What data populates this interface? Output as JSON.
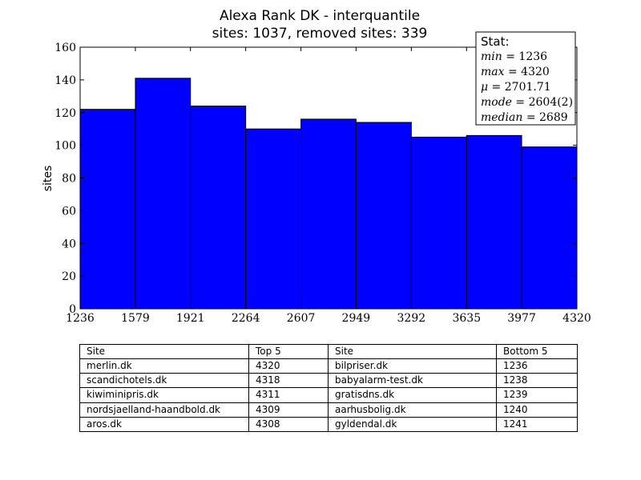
{
  "chart_data": {
    "type": "bar",
    "title": "Alexa Rank DK - interquantile",
    "subtitle": "sites: 1037, removed sites: 339",
    "ylabel": "sites",
    "xlabel": "",
    "xlim": [
      1236,
      4320
    ],
    "ylim": [
      0,
      160
    ],
    "bin_edges": [
      1236,
      1579,
      1921,
      2264,
      2607,
      2949,
      3292,
      3635,
      3977,
      4320
    ],
    "x_tick_labels": [
      "1236",
      "1579",
      "1921",
      "2264",
      "2607",
      "2949",
      "3292",
      "3635",
      "3977",
      "4320"
    ],
    "y_ticks": [
      0,
      20,
      40,
      60,
      80,
      100,
      120,
      140,
      160
    ],
    "values": [
      122,
      141,
      124,
      110,
      116,
      114,
      105,
      106,
      99
    ],
    "bar_color": "#0000ff",
    "grid": false,
    "legend": "none",
    "stat_box": {
      "heading": "Stat:",
      "placement": "top-right",
      "lines": [
        {
          "name": "min",
          "value": "1236"
        },
        {
          "name": "max",
          "value": "4320"
        },
        {
          "name": "μ",
          "value": "2701.71"
        },
        {
          "name": "mode",
          "value": "2604(2)"
        },
        {
          "name": "median",
          "value": "2689"
        }
      ]
    }
  },
  "table": {
    "headers": [
      "Site",
      "Top 5",
      "Site",
      "Bottom 5"
    ],
    "rows": [
      [
        "merlin.dk",
        "4320",
        "bilpriser.dk",
        "1236"
      ],
      [
        "scandichotels.dk",
        "4318",
        "babyalarm-test.dk",
        "1238"
      ],
      [
        "kiwiminipris.dk",
        "4311",
        "gratisdns.dk",
        "1239"
      ],
      [
        "nordsjaelland-haandbold.dk",
        "4309",
        "aarhusbolig.dk",
        "1240"
      ],
      [
        "aros.dk",
        "4308",
        "gyldendal.dk",
        "1241"
      ]
    ]
  }
}
